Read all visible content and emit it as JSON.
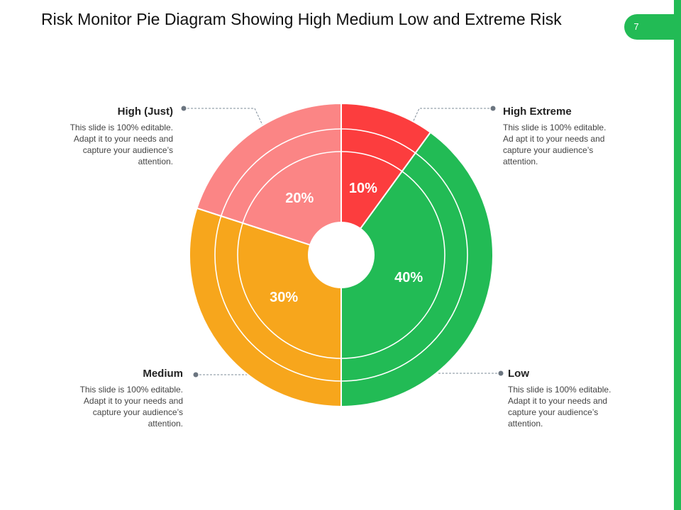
{
  "title": "Risk Monitor Pie Diagram Showing High Medium Low and Extreme Risk",
  "page_number": "7",
  "colors": {
    "accent": "#22bb55",
    "high_extreme": "#fc3d3e",
    "low": "#22bb55",
    "medium": "#f7a61c",
    "high_just": "#fb8585"
  },
  "chart_data": {
    "type": "pie",
    "title": "Risk Monitor Pie Diagram Showing High Medium Low and Extreme Risk",
    "slices": [
      {
        "label": "High Extreme",
        "value": 10,
        "value_label": "10%",
        "color": "#fc3d3e"
      },
      {
        "label": "Low",
        "value": 40,
        "value_label": "40%",
        "color": "#22bb55"
      },
      {
        "label": "Medium",
        "value": 30,
        "value_label": "30%",
        "color": "#f7a61c"
      },
      {
        "label": "High (Just)",
        "value": 20,
        "value_label": "20%",
        "color": "#fb8585"
      }
    ]
  },
  "callouts": {
    "high_just": {
      "title": "High (Just)",
      "text": "This slide is 100% editable. Adapt it to your needs and capture your audience’s attention."
    },
    "high_extreme": {
      "title": "High Extreme",
      "text": "This slide is 100% editable. Ad apt it to your needs and capture your audience’s attention."
    },
    "medium": {
      "title": "Medium",
      "text": "This slide is 100% editable. Adapt it to your needs and capture your audience’s attention."
    },
    "low": {
      "title": "Low",
      "text": "This slide is 100% editable. Adapt it to your needs and capture your audience’s attention."
    }
  }
}
